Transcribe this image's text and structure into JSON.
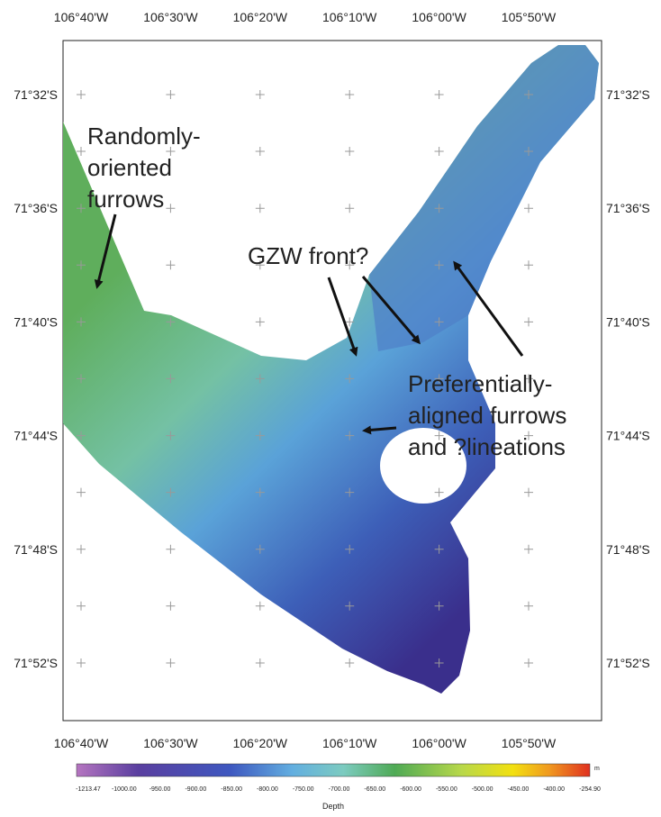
{
  "map": {
    "longitude_labels_top": [
      "106°40'W",
      "106°30'W",
      "106°20'W",
      "106°10'W",
      "106°00'W",
      "105°50'W"
    ],
    "longitude_labels_bottom": [
      "106°40'W",
      "106°30'W",
      "106°20'W",
      "106°10'W",
      "106°00'W",
      "105°50'W"
    ],
    "latitude_labels_left": [
      "71°32'S",
      "71°36'S",
      "71°40'S",
      "71°44'S",
      "71°48'S",
      "71°52'S"
    ],
    "latitude_labels_right": [
      "71°32'S",
      "71°36'S",
      "71°40'S",
      "71°44'S",
      "71°48'S",
      "71°52'S"
    ],
    "annotations": [
      {
        "lines": [
          "Randomly-",
          "oriented",
          "furrows"
        ]
      },
      {
        "lines": [
          "GZW front?"
        ]
      },
      {
        "lines": [
          "Preferentially-",
          "aligned furrows",
          "and ?lineations"
        ]
      }
    ],
    "colorbar": {
      "unit": "m",
      "labels": [
        "-1213.47",
        "-1000.00",
        "-950.00",
        "-900.00",
        "-850.00",
        "-800.00",
        "-750.00",
        "-700.00",
        "-650.00",
        "-600.00",
        "-550.00",
        "-500.00",
        "-450.00",
        "-400.00",
        "-254.90"
      ],
      "title": "Depth"
    }
  }
}
